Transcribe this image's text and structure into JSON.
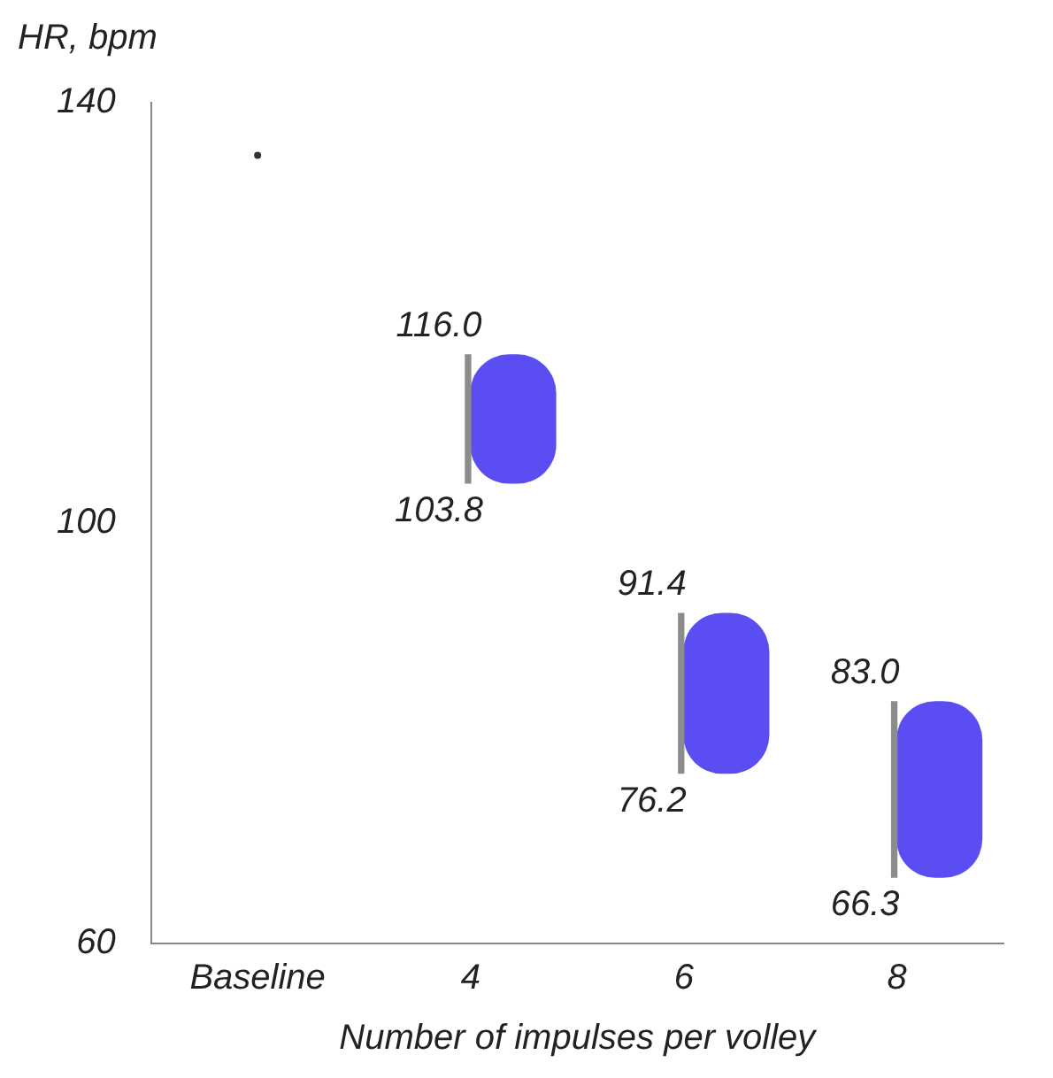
{
  "chart_data": {
    "type": "bar",
    "xlabel": "Number of impulses per volley",
    "ylabel": "HR, bpm",
    "categories": [
      "Baseline",
      "4",
      "6",
      "8"
    ],
    "series": [
      {
        "color": "#8c8c8c",
        "base": [
          null,
          103.8,
          76.2,
          66.3
        ],
        "values": [
          null,
          12.2,
          15.2,
          16.7
        ]
      },
      {
        "color": "#5a4ef2",
        "base": [
          null,
          103.8,
          76.2,
          66.3
        ],
        "values": [
          null,
          12.2,
          15.2,
          16.7
        ]
      },
      {
        "type": "scatter",
        "color": "#333333",
        "x": [
          "Baseline"
        ],
        "values": [
          135
        ]
      }
    ],
    "annotations": [
      {
        "text": "116.0",
        "x": "4",
        "y": 116.0
      },
      {
        "text": "103.8",
        "x": "4",
        "y": 103.8
      },
      {
        "text": "91.4",
        "x": "6",
        "y": 91.4
      },
      {
        "text": "76.2",
        "x": "6",
        "y": 76.2
      },
      {
        "text": "83.0",
        "x": "8",
        "y": 83.0
      },
      {
        "text": "66.3",
        "x": "8",
        "y": 66.3
      }
    ],
    "ylim": [
      60,
      140
    ],
    "yticks": [
      60,
      100,
      140
    ],
    "grid": false,
    "legend": false,
    "marker": "circle"
  }
}
